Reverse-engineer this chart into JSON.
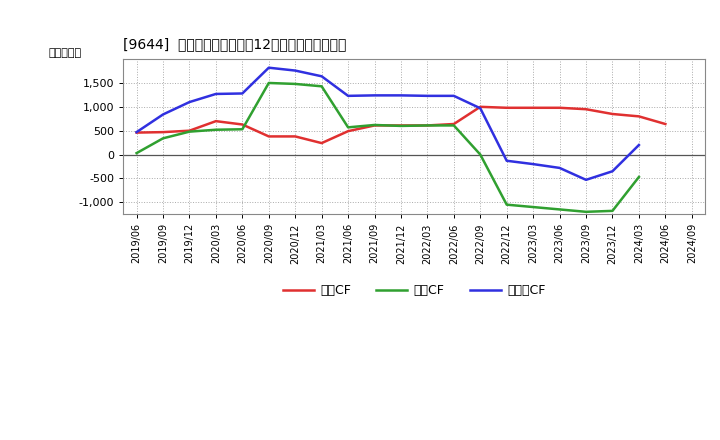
{
  "title": "[9644]  キャッシュフローの12か月移動合計の推移",
  "ylabel": "（百万円）",
  "background_color": "#ffffff",
  "plot_bg_color": "#ffffff",
  "grid_color": "#aaaaaa",
  "x_labels": [
    "2019/06",
    "2019/09",
    "2019/12",
    "2020/03",
    "2020/06",
    "2020/09",
    "2020/12",
    "2021/03",
    "2021/06",
    "2021/09",
    "2021/12",
    "2022/03",
    "2022/06",
    "2022/09",
    "2022/12",
    "2023/03",
    "2023/06",
    "2023/09",
    "2023/12",
    "2024/03",
    "2024/06",
    "2024/09"
  ],
  "operating_cf": [
    460,
    470,
    500,
    700,
    630,
    380,
    380,
    240,
    490,
    610,
    610,
    610,
    640,
    1000,
    980,
    980,
    980,
    950,
    850,
    800,
    640,
    null
  ],
  "investing_cf": [
    30,
    340,
    480,
    520,
    530,
    1500,
    1480,
    1430,
    570,
    620,
    600,
    610,
    610,
    0,
    -1050,
    -1100,
    -1150,
    -1200,
    -1180,
    -470,
    null,
    null
  ],
  "free_cf": [
    470,
    840,
    1100,
    1270,
    1280,
    1820,
    1760,
    1640,
    1230,
    1240,
    1240,
    1230,
    1230,
    970,
    -130,
    -200,
    -280,
    -530,
    -350,
    200,
    null,
    null
  ],
  "colors": {
    "operating": "#e03030",
    "investing": "#30a030",
    "free": "#3030e0"
  },
  "ylim": [
    -1250,
    2000
  ],
  "yticks": [
    -1000,
    -500,
    0,
    500,
    1000,
    1500
  ],
  "legend_labels": [
    "営業CF",
    "投資CF",
    "フリーCF"
  ]
}
